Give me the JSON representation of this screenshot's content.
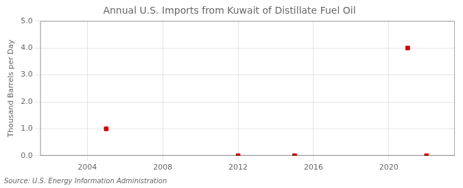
{
  "chart_data": {
    "type": "scatter",
    "title": "Annual U.S. Imports from Kuwait of Distillate Fuel Oil",
    "y_label": "Thousand Barrels per Day",
    "source": "Source: U.S. Energy Information Administration",
    "x": [
      2005,
      2012,
      2015,
      2021,
      2022
    ],
    "values": [
      1.0,
      0.0,
      0.0,
      4.0,
      0.0
    ],
    "color": "#cc0000",
    "marker": "square",
    "xlim": [
      2001.5,
      2023.5
    ],
    "xticks": [
      2004,
      2008,
      2012,
      2016,
      2020
    ],
    "ylim": [
      0.0,
      5.0
    ],
    "yticks": [
      {
        "value": 0,
        "label": "0.0"
      },
      {
        "value": 1,
        "label": "1.0"
      },
      {
        "value": 2,
        "label": "2.0"
      },
      {
        "value": 3,
        "label": "3.0"
      },
      {
        "value": 4,
        "label": "4.0"
      },
      {
        "value": 5,
        "label": "5.0"
      }
    ],
    "grid": true
  }
}
